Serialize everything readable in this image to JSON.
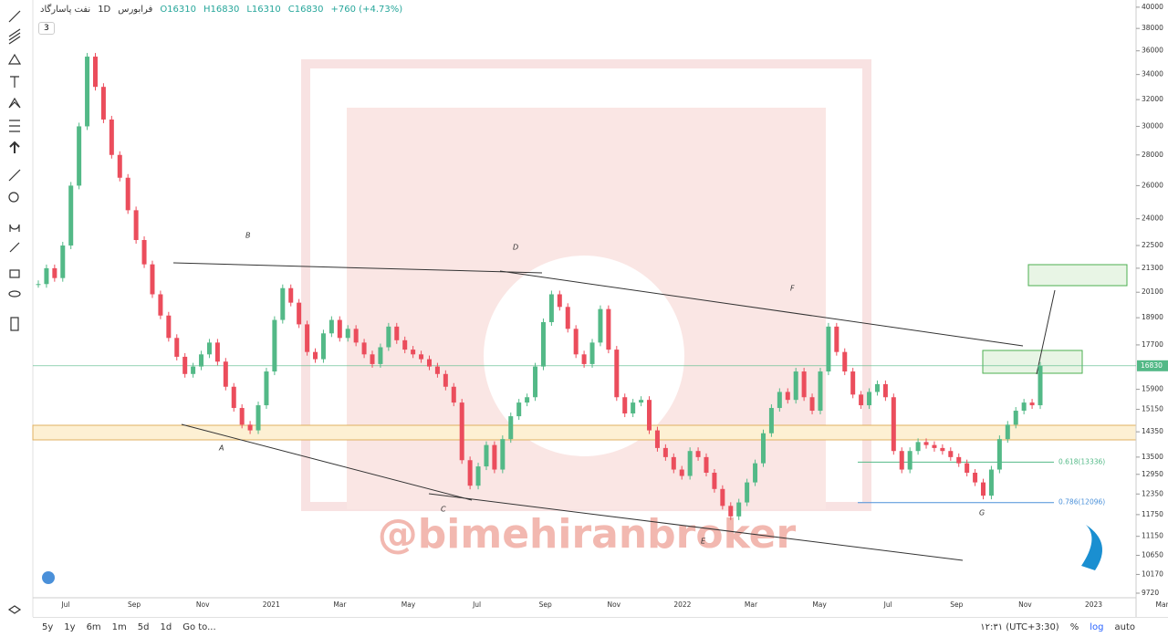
{
  "header": {
    "symbol": "نفت پاسارگاد",
    "interval": "1D",
    "exchange": "فرابورس",
    "open": "O16310",
    "high": "H16830",
    "low": "L16310",
    "close": "C16830",
    "change": "+760 (+4.73%)",
    "indicators_toggle": "3"
  },
  "chart_data": {
    "type": "candlestick",
    "scale": "log",
    "up_color": "#53b987",
    "down_color": "#eb4d5c",
    "ylim": [
      9613,
      40700
    ],
    "yticks": [
      {
        "value": 9720,
        "label": "9720"
      },
      10170,
      10650,
      11150,
      11750,
      12350,
      12950,
      13500,
      14350,
      15150,
      15900,
      17700,
      18900,
      20100,
      21300,
      22500,
      24000,
      26000,
      28000,
      30000,
      32000,
      34000,
      36000,
      38000,
      40000
    ],
    "last_price": 16830,
    "xticks": [
      "Jul",
      "Sep",
      "Nov",
      "2021",
      "Mar",
      "May",
      "Jul",
      "Sep",
      "Nov",
      "2022",
      "Mar",
      "May",
      "Jul",
      "Sep",
      "Nov",
      "2023",
      "Mar"
    ],
    "values": [
      20500,
      21300,
      20800,
      22500,
      26000,
      30000,
      35500,
      33000,
      30500,
      28000,
      26500,
      24500,
      22800,
      21500,
      20000,
      19000,
      18000,
      17200,
      16500,
      16800,
      17300,
      17800,
      17000,
      16000,
      15200,
      14600,
      14400,
      15300,
      16600,
      18800,
      20300,
      19600,
      18600,
      17400,
      17100,
      18200,
      18800,
      18000,
      18400,
      17800,
      17300,
      16900,
      17600,
      18500,
      17900,
      17500,
      17300,
      17100,
      16800,
      16500,
      16000,
      15400,
      13400,
      12600,
      13200,
      13900,
      13100,
      14100,
      14900,
      15400,
      15600,
      16800,
      18700,
      20000,
      19400,
      18400,
      17300,
      16900,
      17800,
      19300,
      17500,
      15600,
      15000,
      15400,
      15500,
      14400,
      13800,
      13500,
      13100,
      12900,
      13700,
      13500,
      13000,
      12500,
      12000,
      11700,
      12100,
      12700,
      13300,
      14300,
      15200,
      15800,
      15500,
      16600,
      15600,
      15100,
      16600,
      18500,
      17400,
      16600,
      15700,
      15300,
      15800,
      16100,
      15600,
      13700,
      13100,
      13700,
      14000,
      13900,
      13800,
      13700,
      13500,
      13300,
      13000,
      12700,
      12300,
      13100,
      14100,
      14600,
      15100,
      15400,
      15300,
      16830
    ],
    "fib_levels": [
      {
        "value": 13336,
        "label": "0.618(13336)"
      },
      {
        "value": 12096,
        "label": "0.786(12096)"
      }
    ],
    "wave_labels": [
      "A",
      "B",
      "C",
      "D",
      "E",
      "F",
      "G"
    ],
    "watermark": "@bimehiranbroker"
  },
  "footer": {
    "ranges": [
      "5y",
      "1y",
      "6m",
      "1m",
      "5d",
      "1d"
    ],
    "goto": "Go to...",
    "time": "۱۲:۳۱ (UTC+3:30)",
    "percent": "%",
    "log": "log",
    "auto": "auto"
  }
}
